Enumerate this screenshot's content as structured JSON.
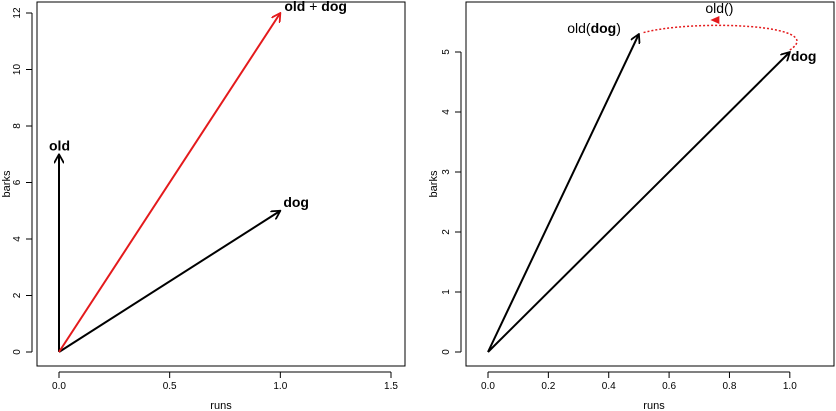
{
  "chart_data": [
    {
      "type": "vector",
      "xlabel": "runs",
      "ylabel": "barks",
      "xlim": [
        0,
        1.5
      ],
      "ylim": [
        0,
        12
      ],
      "xticks": [
        "0.0",
        "0.5",
        "1.0",
        "1.5"
      ],
      "yticks": [
        "0",
        "2",
        "4",
        "6",
        "8",
        "10",
        "12"
      ],
      "vectors": [
        {
          "label": "old",
          "from": [
            0,
            0
          ],
          "to": [
            0,
            7
          ],
          "color": "#000000",
          "label_parts": [
            {
              "t": "old",
              "bold": true
            }
          ]
        },
        {
          "label": "dog",
          "from": [
            0,
            0
          ],
          "to": [
            1,
            5
          ],
          "color": "#000000",
          "label_parts": [
            {
              "t": "dog",
              "bold": true
            }
          ]
        },
        {
          "label": "old + dog",
          "from": [
            0,
            0
          ],
          "to": [
            1,
            12
          ],
          "color": "#e41a1c",
          "label_parts": [
            {
              "t": "old",
              "bold": true
            },
            {
              "t": " + ",
              "bold": false
            },
            {
              "t": "dog",
              "bold": true
            }
          ]
        }
      ]
    },
    {
      "type": "vector",
      "xlabel": "runs",
      "ylabel": "barks",
      "xlim": [
        0,
        1.1
      ],
      "ylim": [
        0,
        5.5
      ],
      "xticks": [
        "0.0",
        "0.2",
        "0.4",
        "0.6",
        "0.8",
        "1.0"
      ],
      "yticks": [
        "0",
        "1",
        "2",
        "3",
        "4",
        "5"
      ],
      "vectors": [
        {
          "label": "old(dog)",
          "from": [
            0,
            0
          ],
          "to": [
            0.5,
            5.3
          ],
          "color": "#000000",
          "label_parts": [
            {
              "t": "old(",
              "bold": false
            },
            {
              "t": "dog",
              "bold": true
            },
            {
              "t": ")",
              "bold": false
            }
          ]
        },
        {
          "label": "dog",
          "from": [
            0,
            0
          ],
          "to": [
            1,
            5
          ],
          "color": "#000000",
          "label_parts": [
            {
              "t": "dog",
              "bold": true
            }
          ]
        }
      ],
      "transformation": {
        "label": "old()",
        "from": [
          1,
          5
        ],
        "to": [
          0.5,
          5.3
        ],
        "style": "dotted",
        "color": "#e41a1c"
      }
    }
  ]
}
